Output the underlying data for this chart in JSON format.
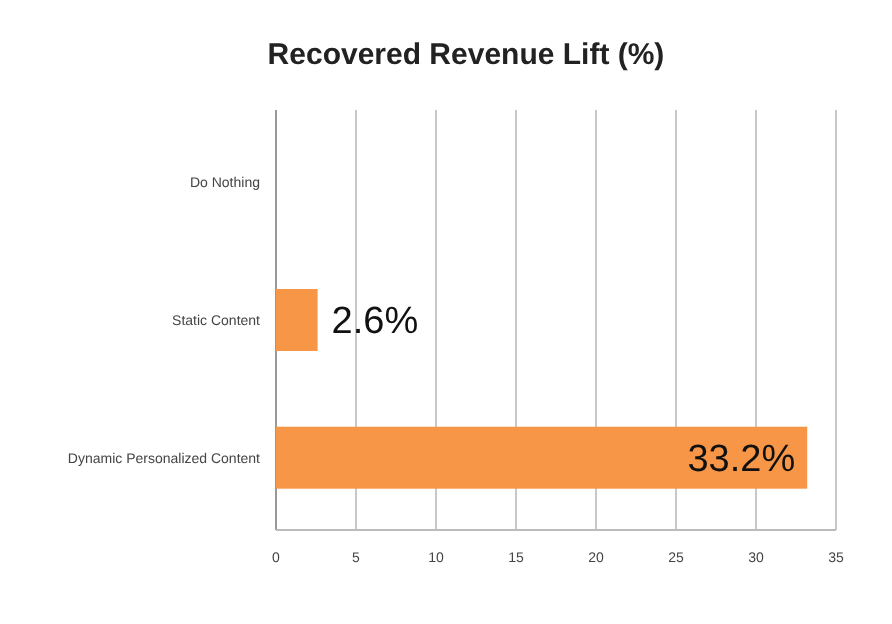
{
  "chart_data": {
    "type": "bar",
    "orientation": "horizontal",
    "title": "Recovered Revenue Lift (%)",
    "categories": [
      "Do Nothing",
      "Static Content",
      "Dynamic Personalized Content"
    ],
    "values": [
      0,
      2.6,
      33.2
    ],
    "value_labels": [
      null,
      "2.6%",
      "33.2%"
    ],
    "color": "#f79646",
    "xlim": [
      0,
      35
    ],
    "xticks": [
      0,
      5,
      10,
      15,
      20,
      25,
      30,
      35
    ],
    "grid": "x"
  }
}
